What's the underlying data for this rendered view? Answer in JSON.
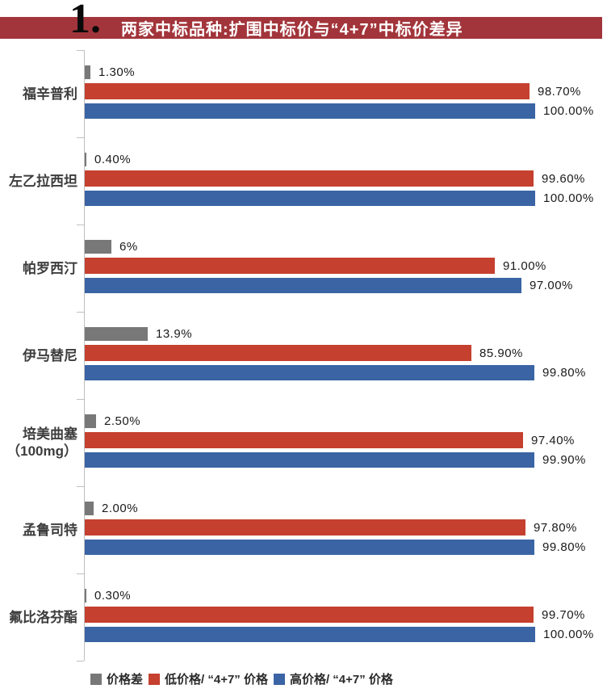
{
  "header": {
    "index": "1.",
    "title": "两家中标品种:扩围中标价与“4+7”中标价差异"
  },
  "colors": {
    "banner": "#a2353b",
    "diff": "#787878",
    "low": "#c5402e",
    "high": "#3a64a4",
    "axis": "#c0c0c0"
  },
  "chart_data": {
    "type": "bar",
    "orientation": "horizontal",
    "title": "两家中标品种:扩围中标价与“4+7”中标价差异",
    "xlabel": "",
    "ylabel": "",
    "xlim": [
      0,
      100
    ],
    "grid": false,
    "legend_position": "bottom",
    "categories": [
      "福辛普利",
      "左乙拉西坦",
      "帕罗西汀",
      "伊马替尼",
      "培美曲塞（100mg）",
      "孟鲁司特",
      "氟比洛芬酯"
    ],
    "category_lines": [
      [
        "福辛普利"
      ],
      [
        "左乙拉西坦"
      ],
      [
        "帕罗西汀"
      ],
      [
        "伊马替尼"
      ],
      [
        "培美曲塞",
        "（100mg）"
      ],
      [
        "孟鲁司特"
      ],
      [
        "氟比洛芬酯"
      ]
    ],
    "series": [
      {
        "name": "价格差",
        "color_key": "diff",
        "values": [
          1.3,
          0.4,
          6,
          13.9,
          2.5,
          2.0,
          0.3
        ],
        "labels": [
          "1.30%",
          "0.40%",
          "6%",
          "13.9%",
          "2.50%",
          "2.00%",
          "0.30%"
        ]
      },
      {
        "name": "低价格/“4+7”价格",
        "color_key": "low",
        "values": [
          98.7,
          99.6,
          91.0,
          85.9,
          97.4,
          97.8,
          99.7
        ],
        "labels": [
          "98.70%",
          "99.60%",
          "91.00%",
          "85.90%",
          "97.40%",
          "97.80%",
          "99.70%"
        ]
      },
      {
        "name": "高价格/“4+7”价格",
        "color_key": "high",
        "values": [
          100.0,
          100.0,
          97.0,
          99.8,
          99.9,
          99.8,
          100.0
        ],
        "labels": [
          "100.00%",
          "100.00%",
          "97.00%",
          "99.80%",
          "99.90%",
          "99.80%",
          "100.00%"
        ]
      }
    ],
    "legend": [
      {
        "label": "价格差",
        "color_key": "diff"
      },
      {
        "label": "低价格/ “4+7” 价格",
        "color_key": "low"
      },
      {
        "label": "高价格/ “4+7” 价格",
        "color_key": "high"
      }
    ]
  }
}
